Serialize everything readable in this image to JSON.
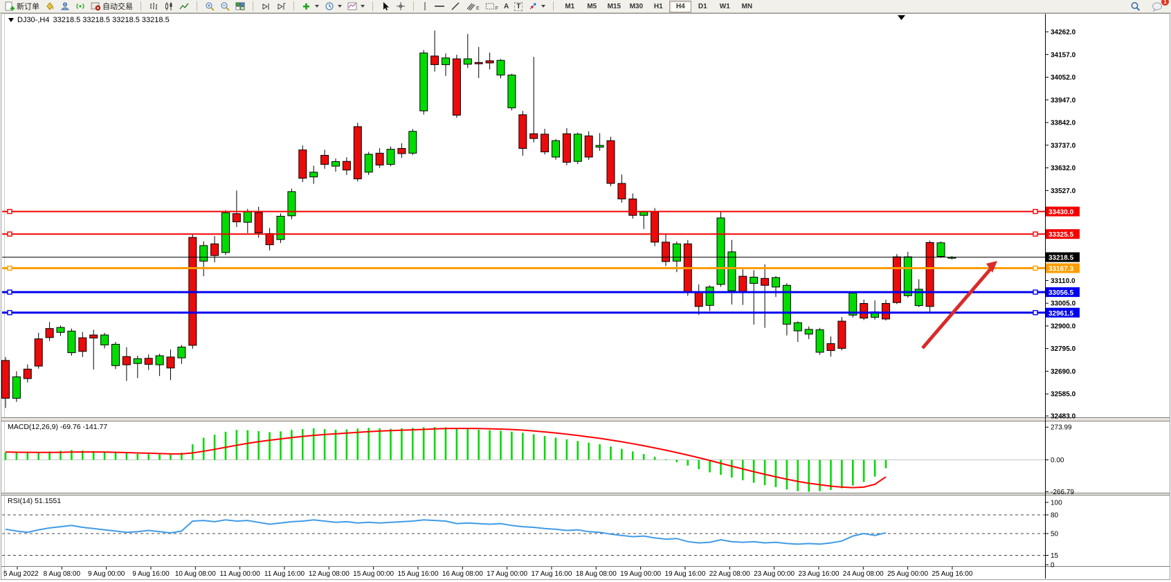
{
  "toolbar": {
    "new_order_label": "新订单",
    "autotrade_label": "自动交易",
    "timeframes": [
      "M1",
      "M5",
      "M15",
      "M30",
      "H1",
      "H4",
      "D1",
      "W1",
      "MN"
    ],
    "active_timeframe": "H4",
    "notification_count": "1",
    "icon_letters": {
      "text_a": "A",
      "text_label": "T",
      "fib_e": "E",
      "channel_f": "F"
    }
  },
  "chart_data": {
    "type": "candlestick",
    "symbol": "DJ30-,H4",
    "quotes": "33218.5 33218.5 33218.5 33218.5",
    "current_price": "33218.5",
    "price_ticks": [
      34262.0,
      34157.0,
      34052.0,
      33947.0,
      33842.0,
      33737.0,
      33632.0,
      33527.0,
      33110.0,
      33005.0,
      32900.0,
      32795.0,
      32690.0,
      32585.0,
      32483.0
    ],
    "levels": [
      {
        "price": 33430.0,
        "label": "33430.0",
        "color": "#f40000",
        "width": 2
      },
      {
        "price": 33325.5,
        "label": "33325.5",
        "color": "#f40000",
        "width": 2
      },
      {
        "price": 33218.5,
        "label": "33218.5",
        "color": "#000000",
        "width": 1
      },
      {
        "price": 33167.3,
        "label": "33167.3",
        "color": "#ff9d00",
        "width": 3
      },
      {
        "price": 33056.5,
        "label": "33056.5",
        "color": "#0000ee",
        "width": 3
      },
      {
        "price": 32961.5,
        "label": "32961.5",
        "color": "#0000ee",
        "width": 3
      }
    ],
    "time_labels": [
      "5 Aug 2022",
      "8 Aug 08:00",
      "9 Aug 00:00",
      "9 Aug 16:00",
      "10 Aug 08:00",
      "11 Aug 00:00",
      "11 Aug 16:00",
      "12 Aug 08:00",
      "15 Aug 00:00",
      "15 Aug 16:00",
      "16 Aug 08:00",
      "17 Aug 00:00",
      "17 Aug 16:00",
      "18 Aug 08:00",
      "19 Aug 00:00",
      "19 Aug 16:00",
      "22 Aug 08:00",
      "23 Aug 00:00",
      "23 Aug 16:00",
      "24 Aug 08:00",
      "25 Aug 00:00",
      "25 Aug 16:00"
    ],
    "candles": [
      [
        32740,
        32756,
        32520,
        32565
      ],
      [
        32565,
        32690,
        32548,
        32664
      ],
      [
        32700,
        32722,
        32638,
        32656
      ],
      [
        32840,
        32868,
        32702,
        32714
      ],
      [
        32888,
        32918,
        32830,
        32846
      ],
      [
        32870,
        32902,
        32854,
        32893
      ],
      [
        32776,
        32888,
        32762,
        32876
      ],
      [
        32845,
        32872,
        32756,
        32782
      ],
      [
        32858,
        32882,
        32698,
        32844
      ],
      [
        32812,
        32868,
        32796,
        32858
      ],
      [
        32716,
        32826,
        32700,
        32815
      ],
      [
        32758,
        32801,
        32645,
        32720
      ],
      [
        32726,
        32762,
        32658,
        32748
      ],
      [
        32750,
        32768,
        32696,
        32722
      ],
      [
        32720,
        32771,
        32668,
        32762
      ],
      [
        32756,
        32791,
        32649,
        32705
      ],
      [
        32752,
        32812,
        32724,
        32802
      ],
      [
        33310,
        33324,
        32794,
        32810
      ],
      [
        33200,
        33292,
        33130,
        33272
      ],
      [
        33280,
        33316,
        33194,
        33226
      ],
      [
        33240,
        33436,
        33228,
        33424
      ],
      [
        33420,
        33527,
        33358,
        33382
      ],
      [
        33380,
        33442,
        33330,
        33428
      ],
      [
        33425,
        33452,
        33308,
        33331
      ],
      [
        33328,
        33354,
        33250,
        33276
      ],
      [
        33300,
        33421,
        33284,
        33408
      ],
      [
        33410,
        33536,
        33394,
        33522
      ],
      [
        33715,
        33736,
        33566,
        33584
      ],
      [
        33590,
        33642,
        33558,
        33612
      ],
      [
        33690,
        33716,
        33628,
        33648
      ],
      [
        33640,
        33676,
        33614,
        33661
      ],
      [
        33662,
        33681,
        33599,
        33622
      ],
      [
        33823,
        33841,
        33569,
        33581
      ],
      [
        33612,
        33706,
        33599,
        33695
      ],
      [
        33700,
        33723,
        33632,
        33645
      ],
      [
        33648,
        33731,
        33639,
        33718
      ],
      [
        33722,
        33746,
        33679,
        33698
      ],
      [
        33700,
        33812,
        33691,
        33801
      ],
      [
        33896,
        34178,
        33879,
        34164
      ],
      [
        34150,
        34268,
        34078,
        34110
      ],
      [
        34110,
        34162,
        34058,
        34141
      ],
      [
        34137,
        34156,
        33864,
        33876
      ],
      [
        34112,
        34252,
        34094,
        34137
      ],
      [
        34120,
        34192,
        34048,
        34114
      ],
      [
        34128,
        34166,
        34088,
        34118
      ],
      [
        34062,
        34136,
        34047,
        34130
      ],
      [
        33910,
        34068,
        33898,
        34062
      ],
      [
        33878,
        33896,
        33688,
        33722
      ],
      [
        33790,
        34146,
        33750,
        33768
      ],
      [
        33788,
        33813,
        33694,
        33706
      ],
      [
        33682,
        33766,
        33670,
        33758
      ],
      [
        33790,
        33816,
        33644,
        33658
      ],
      [
        33662,
        33796,
        33650,
        33788
      ],
      [
        33780,
        33801,
        33669,
        33682
      ],
      [
        33728,
        33793,
        33711,
        33736
      ],
      [
        33758,
        33776,
        33547,
        33560
      ],
      [
        33560,
        33601,
        33471,
        33488
      ],
      [
        33488,
        33513,
        33397,
        33412
      ],
      [
        33412,
        33433,
        33349,
        33428
      ],
      [
        33428,
        33446,
        33269,
        33288
      ],
      [
        33288,
        33326,
        33177,
        33198
      ],
      [
        33200,
        33291,
        33149,
        33280
      ],
      [
        33280,
        33298,
        33039,
        33058
      ],
      [
        33058,
        33092,
        32951,
        32990
      ],
      [
        32995,
        33088,
        32969,
        33080
      ],
      [
        33092,
        33432,
        33081,
        33400
      ],
      [
        33063,
        33298,
        32999,
        33243
      ],
      [
        33130,
        33162,
        32997,
        33060
      ],
      [
        33097,
        33158,
        32906,
        33126
      ],
      [
        33120,
        33185,
        32891,
        33088
      ],
      [
        33080,
        33131,
        33034,
        33124
      ],
      [
        32908,
        33098,
        32856,
        33088
      ],
      [
        32877,
        32921,
        32826,
        32915
      ],
      [
        32862,
        32898,
        32839,
        32884
      ],
      [
        32778,
        32891,
        32766,
        32882
      ],
      [
        32818,
        32851,
        32757,
        32786
      ],
      [
        32922,
        32941,
        32787,
        32796
      ],
      [
        32950,
        33057,
        32939,
        33052
      ],
      [
        33004,
        33022,
        32927,
        32936
      ],
      [
        32940,
        33018,
        32929,
        32965
      ],
      [
        33004,
        33021,
        32925,
        32932
      ],
      [
        33220,
        33233,
        33001,
        33008
      ],
      [
        33040,
        33243,
        33031,
        33220
      ],
      [
        32994,
        33116,
        32987,
        33070
      ],
      [
        33286,
        33295,
        32965,
        32990
      ],
      [
        33222,
        33291,
        33215,
        33285
      ],
      [
        33216,
        33224,
        33208,
        33218.5
      ]
    ],
    "macd": {
      "label": "MACD(12,26,9) -69.76 -141.77",
      "axis": [
        {
          "text": "273.99",
          "v": 273.99
        },
        {
          "text": "0.00",
          "v": 0
        },
        {
          "text": "-266.79",
          "v": -266.79
        }
      ],
      "hist": [
        62,
        58,
        60,
        64,
        70,
        76,
        82,
        78,
        72,
        66,
        60,
        55,
        50,
        48,
        46,
        44,
        60,
        130,
        185,
        210,
        235,
        250,
        248,
        240,
        232,
        238,
        250,
        258,
        264,
        258,
        252,
        255,
        262,
        268,
        264,
        260,
        263,
        268,
        272,
        274,
        272,
        266,
        258,
        252,
        248,
        244,
        236,
        226,
        214,
        200,
        186,
        172,
        158,
        144,
        130,
        112,
        92,
        70,
        48,
        26,
        4,
        -20,
        -48,
        -78,
        -104,
        -126,
        -148,
        -170,
        -192,
        -212,
        -228,
        -248,
        -262,
        -267,
        -262,
        -252,
        -238,
        -215,
        -185,
        -140,
        -70
      ],
      "signal": [
        66,
        64,
        63,
        62,
        62,
        63,
        65,
        66,
        66,
        65,
        63,
        61,
        58,
        56,
        53,
        50,
        50,
        58,
        72,
        88,
        105,
        122,
        138,
        152,
        164,
        175,
        186,
        196,
        205,
        212,
        218,
        224,
        230,
        236,
        241,
        245,
        248,
        251,
        255,
        259,
        262,
        263,
        263,
        262,
        260,
        258,
        254,
        249,
        242,
        234,
        225,
        215,
        204,
        192,
        180,
        166,
        151,
        135,
        118,
        100,
        81,
        61,
        40,
        18,
        -5,
        -29,
        -53,
        -76,
        -99,
        -121,
        -142,
        -162,
        -180,
        -196,
        -208,
        -220,
        -228,
        -232,
        -228,
        -205,
        -142
      ]
    },
    "rsi": {
      "label": "RSI(14) 51.1551",
      "axis": [
        {
          "text": "100",
          "v": 100
        },
        {
          "text": "80",
          "v": 80
        },
        {
          "text": "50",
          "v": 50
        },
        {
          "text": "15",
          "v": 15
        },
        {
          "text": "0",
          "v": 0
        }
      ],
      "dashed_levels": [
        80,
        50,
        15
      ],
      "values": [
        57,
        54,
        52,
        56,
        59,
        61,
        63,
        60,
        58,
        56,
        54,
        52,
        53,
        55,
        53,
        51,
        54,
        70,
        71,
        69,
        72,
        70,
        71,
        68,
        65,
        67,
        69,
        70,
        72,
        70,
        68,
        69,
        67,
        68,
        67,
        68,
        69,
        70,
        72,
        71,
        70,
        66,
        67,
        66,
        65,
        66,
        63,
        61,
        60,
        58,
        57,
        55,
        56,
        53,
        52,
        49,
        47,
        45,
        46,
        43,
        41,
        42,
        37,
        35,
        36,
        40,
        37,
        36,
        37,
        35,
        36,
        34,
        33,
        34,
        33,
        35,
        38,
        46,
        50,
        47,
        51.16
      ]
    },
    "annotation_arrow": {
      "from": [
        1333,
        503
      ],
      "to": [
        1441,
        377
      ],
      "color": "#da2a2a"
    },
    "colors": {
      "bull": "#00dc00",
      "bear": "#ea0b0b",
      "outline": "#000000",
      "macd_hist": "#00dc00",
      "macd_signal": "#ff0000",
      "rsi_line": "#3f9be8"
    }
  }
}
